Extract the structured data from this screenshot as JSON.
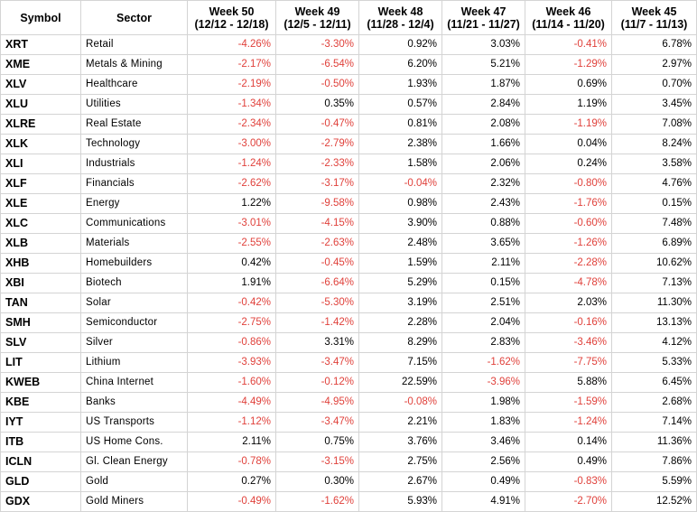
{
  "colors": {
    "negative": "#e0413b",
    "positive": "#000000",
    "grid": "#d4d4d4"
  },
  "headers": [
    {
      "l1": "Symbol",
      "l2": ""
    },
    {
      "l1": "Sector",
      "l2": ""
    },
    {
      "l1": "Week 50",
      "l2": "(12/12 - 12/18)"
    },
    {
      "l1": "Week 49",
      "l2": "(12/5 - 12/11)"
    },
    {
      "l1": "Week 48",
      "l2": "(11/28 - 12/4)"
    },
    {
      "l1": "Week 47",
      "l2": "(11/21 - 11/27)"
    },
    {
      "l1": "Week 46",
      "l2": "(11/14 - 11/20)"
    },
    {
      "l1": "Week 45",
      "l2": "(11/7 - 11/13)"
    }
  ],
  "rows": [
    {
      "symbol": "XRT",
      "sector": "Retail",
      "values": [
        "-4.26%",
        "-3.30%",
        "0.92%",
        "3.03%",
        "-0.41%",
        "6.78%"
      ]
    },
    {
      "symbol": "XME",
      "sector": "Metals & Mining",
      "values": [
        "-2.17%",
        "-6.54%",
        "6.20%",
        "5.21%",
        "-1.29%",
        "2.97%"
      ]
    },
    {
      "symbol": "XLV",
      "sector": "Healthcare",
      "values": [
        "-2.19%",
        "-0.50%",
        "1.93%",
        "1.87%",
        "0.69%",
        "0.70%"
      ]
    },
    {
      "symbol": "XLU",
      "sector": "Utilities",
      "values": [
        "-1.34%",
        "0.35%",
        "0.57%",
        "2.84%",
        "1.19%",
        "3.45%"
      ]
    },
    {
      "symbol": "XLRE",
      "sector": "Real Estate",
      "values": [
        "-2.34%",
        "-0.47%",
        "0.81%",
        "2.08%",
        "-1.19%",
        "7.08%"
      ]
    },
    {
      "symbol": "XLK",
      "sector": "Technology",
      "values": [
        "-3.00%",
        "-2.79%",
        "2.38%",
        "1.66%",
        "0.04%",
        "8.24%"
      ]
    },
    {
      "symbol": "XLI",
      "sector": "Industrials",
      "values": [
        "-1.24%",
        "-2.33%",
        "1.58%",
        "2.06%",
        "0.24%",
        "3.58%"
      ]
    },
    {
      "symbol": "XLF",
      "sector": "Financials",
      "values": [
        "-2.62%",
        "-3.17%",
        "-0.04%",
        "2.32%",
        "-0.80%",
        "4.76%"
      ]
    },
    {
      "symbol": "XLE",
      "sector": "Energy",
      "values": [
        "1.22%",
        "-9.58%",
        "0.98%",
        "2.43%",
        "-1.76%",
        "0.15%"
      ]
    },
    {
      "symbol": "XLC",
      "sector": "Communications",
      "values": [
        "-3.01%",
        "-4.15%",
        "3.90%",
        "0.88%",
        "-0.60%",
        "7.48%"
      ]
    },
    {
      "symbol": "XLB",
      "sector": "Materials",
      "values": [
        "-2.55%",
        "-2.63%",
        "2.48%",
        "3.65%",
        "-1.26%",
        "6.89%"
      ]
    },
    {
      "symbol": "XHB",
      "sector": "Homebuilders",
      "values": [
        "0.42%",
        "-0.45%",
        "1.59%",
        "2.11%",
        "-2.28%",
        "10.62%"
      ]
    },
    {
      "symbol": "XBI",
      "sector": "Biotech",
      "values": [
        "1.91%",
        "-6.64%",
        "5.29%",
        "0.15%",
        "-4.78%",
        "7.13%"
      ]
    },
    {
      "symbol": "TAN",
      "sector": "Solar",
      "values": [
        "-0.42%",
        "-5.30%",
        "3.19%",
        "2.51%",
        "2.03%",
        "11.30%"
      ]
    },
    {
      "symbol": "SMH",
      "sector": "Semiconductor",
      "values": [
        "-2.75%",
        "-1.42%",
        "2.28%",
        "2.04%",
        "-0.16%",
        "13.13%"
      ]
    },
    {
      "symbol": "SLV",
      "sector": "Silver",
      "values": [
        "-0.86%",
        "3.31%",
        "8.29%",
        "2.83%",
        "-3.46%",
        "4.12%"
      ]
    },
    {
      "symbol": "LIT",
      "sector": "Lithium",
      "values": [
        "-3.93%",
        "-3.47%",
        "7.15%",
        "-1.62%",
        "-7.75%",
        "5.33%"
      ]
    },
    {
      "symbol": "KWEB",
      "sector": "China Internet",
      "values": [
        "-1.60%",
        "-0.12%",
        "22.59%",
        "-3.96%",
        "5.88%",
        "6.45%"
      ]
    },
    {
      "symbol": "KBE",
      "sector": "Banks",
      "values": [
        "-4.49%",
        "-4.95%",
        "-0.08%",
        "1.98%",
        "-1.59%",
        "2.68%"
      ]
    },
    {
      "symbol": "IYT",
      "sector": "US Transports",
      "values": [
        "-1.12%",
        "-3.47%",
        "2.21%",
        "1.83%",
        "-1.24%",
        "7.14%"
      ]
    },
    {
      "symbol": "ITB",
      "sector": "US Home Cons.",
      "values": [
        "2.11%",
        "0.75%",
        "3.76%",
        "3.46%",
        "0.14%",
        "11.36%"
      ]
    },
    {
      "symbol": "ICLN",
      "sector": "Gl. Clean Energy",
      "values": [
        "-0.78%",
        "-3.15%",
        "2.75%",
        "2.56%",
        "0.49%",
        "7.86%"
      ]
    },
    {
      "symbol": "GLD",
      "sector": "Gold",
      "values": [
        "0.27%",
        "0.30%",
        "2.67%",
        "0.49%",
        "-0.83%",
        "5.59%"
      ]
    },
    {
      "symbol": "GDX",
      "sector": "Gold Miners",
      "values": [
        "-0.49%",
        "-1.62%",
        "5.93%",
        "4.91%",
        "-2.70%",
        "12.52%"
      ]
    }
  ]
}
